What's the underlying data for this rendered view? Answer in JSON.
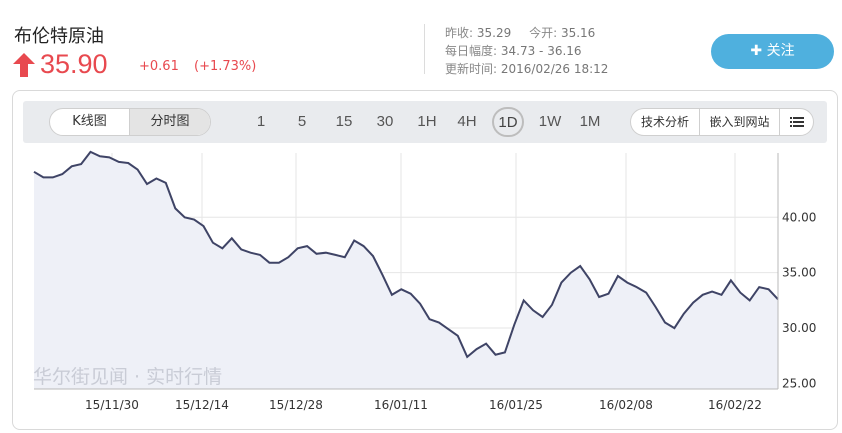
{
  "header": {
    "title": "布伦特原油",
    "price": "35.90",
    "change": "+0.61",
    "change_pct": "(+1.73%)",
    "colors": {
      "up": "#e8494f",
      "accent": "#4fb0de"
    },
    "prev_close_label": "昨收:",
    "prev_close": "35.29",
    "open_label": "今开:",
    "open": "35.16",
    "range_label": "每日幅度:",
    "range": "34.73 - 36.16",
    "updated_label": "更新时间:",
    "updated": "2016/02/26 18:12",
    "follow_label": "关注",
    "follow_icon": "plus-icon"
  },
  "toolbar": {
    "chart_types": [
      "K线图",
      "分时图"
    ],
    "active_chart_type": "分时图",
    "periods": [
      "1",
      "5",
      "15",
      "30",
      "1H",
      "4H",
      "1D",
      "1W",
      "1M"
    ],
    "active_period": "1D",
    "tech_analysis_label": "技术分析",
    "embed_label": "嵌入到网站",
    "menu_icon": "list-icon"
  },
  "watermark": "华尔街见闻 · 实时行情",
  "chart_data": {
    "type": "area",
    "title": "",
    "xlabel": "",
    "ylabel": "",
    "x_ticks": [
      "15/11/30",
      "15/12/14",
      "15/12/28",
      "16/01/11",
      "16/01/25",
      "16/02/08",
      "16/02/22"
    ],
    "y_ticks": [
      "25.00",
      "30.00",
      "35.00",
      "40.00"
    ],
    "ylim": [
      24.5,
      45.8
    ],
    "grid": true,
    "line_color": "#3f4466",
    "fill_color": "#eef0f7",
    "series": [
      {
        "values": [
          44.1,
          43.6,
          43.6,
          43.9,
          44.6,
          44.8,
          45.9,
          45.5,
          45.4,
          45.0,
          44.9,
          44.3,
          43.0,
          43.5,
          43.1,
          40.8,
          40.0,
          39.8,
          39.2,
          37.7,
          37.2,
          38.1,
          37.1,
          36.8,
          36.6,
          35.9,
          35.9,
          36.4,
          37.2,
          37.4,
          36.7,
          36.8,
          36.6,
          36.4,
          37.9,
          37.4,
          36.5,
          34.8,
          33.0,
          33.5,
          33.1,
          32.2,
          30.8,
          30.5,
          29.9,
          29.3,
          27.4,
          28.1,
          28.6,
          27.6,
          27.8,
          30.3,
          32.5,
          31.6,
          31.0,
          32.1,
          34.1,
          35.0,
          35.6,
          34.4,
          32.8,
          33.1,
          34.7,
          34.1,
          33.7,
          33.2,
          31.9,
          30.5,
          30.0,
          31.3,
          32.3,
          33.0,
          33.3,
          33.0,
          34.3,
          33.2,
          32.5,
          33.7,
          33.5,
          32.6
        ]
      }
    ]
  }
}
